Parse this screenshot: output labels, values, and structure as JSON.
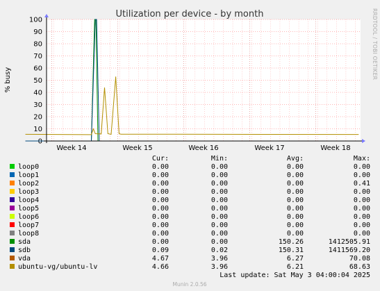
{
  "chart_data": {
    "type": "line",
    "title": "Utilization per device - by month",
    "ylabel": "% busy",
    "ylim": [
      0,
      100
    ],
    "yticks": [
      0,
      10,
      20,
      30,
      40,
      50,
      60,
      70,
      80,
      90,
      100
    ],
    "x_ticks": [
      "Week 14",
      "Week 15",
      "Week 16",
      "Week 17",
      "Week 18"
    ],
    "grid": true,
    "side_text": "RRDTOOL / TOBI OETIKER",
    "legend_headers": [
      "Cur:",
      "Min:",
      "Avg:",
      "Max:"
    ],
    "series": [
      {
        "name": "loop0",
        "color": "#00cc00",
        "cur": "0.00",
        "min": "0.00",
        "avg": "0.00",
        "max": "0.00"
      },
      {
        "name": "loop1",
        "color": "#0066b3",
        "cur": "0.00",
        "min": "0.00",
        "avg": "0.00",
        "max": "0.00"
      },
      {
        "name": "loop2",
        "color": "#ff8000",
        "cur": "0.00",
        "min": "0.00",
        "avg": "0.00",
        "max": "0.41"
      },
      {
        "name": "loop3",
        "color": "#ffcc00",
        "cur": "0.00",
        "min": "0.00",
        "avg": "0.00",
        "max": "0.00"
      },
      {
        "name": "loop4",
        "color": "#330099",
        "cur": "0.00",
        "min": "0.00",
        "avg": "0.00",
        "max": "0.00"
      },
      {
        "name": "loop5",
        "color": "#990099",
        "cur": "0.00",
        "min": "0.00",
        "avg": "0.00",
        "max": "0.00"
      },
      {
        "name": "loop6",
        "color": "#ccff00",
        "cur": "0.00",
        "min": "0.00",
        "avg": "0.00",
        "max": "0.00"
      },
      {
        "name": "loop7",
        "color": "#ff0000",
        "cur": "0.00",
        "min": "0.00",
        "avg": "0.00",
        "max": "0.00"
      },
      {
        "name": "loop8",
        "color": "#808080",
        "cur": "0.00",
        "min": "0.00",
        "avg": "0.00",
        "max": "0.00"
      },
      {
        "name": "sda",
        "color": "#008f00",
        "cur": "0.00",
        "min": "0.00",
        "avg": "150.26",
        "max": "1412505.91"
      },
      {
        "name": "sdb",
        "color": "#00487d",
        "cur": "0.09",
        "min": "0.02",
        "avg": "150.31",
        "max": "1411569.20"
      },
      {
        "name": "vda",
        "color": "#b35a00",
        "cur": "4.67",
        "min": "3.96",
        "avg": "6.27",
        "max": "70.08"
      },
      {
        "name": "ubuntu-vg/ubuntu-lv",
        "color": "#b38f00",
        "cur": "4.66",
        "min": "3.96",
        "avg": "6.21",
        "max": "68.63"
      }
    ],
    "plotted": [
      {
        "series": "sda",
        "x_week": [
          13.3,
          14.3,
          14.35,
          14.37,
          14.4,
          18.35
        ],
        "y": [
          0,
          0,
          100,
          100,
          0,
          0
        ]
      },
      {
        "series": "sdb",
        "x_week": [
          13.3,
          14.3,
          14.36,
          14.38,
          14.42,
          18.35
        ],
        "y": [
          0,
          0,
          100,
          100,
          0,
          0
        ]
      },
      {
        "series": "ubuntu-vg/ubuntu-lv",
        "x_week": [
          13.3,
          14.3,
          14.33,
          14.36,
          14.45,
          14.5,
          14.55,
          14.6,
          14.67,
          14.72,
          14.75,
          18.35
        ],
        "y": [
          5.5,
          5.2,
          10,
          6,
          5.8,
          44,
          6,
          5.5,
          53,
          6,
          5.6,
          5.4
        ]
      }
    ],
    "last_update": "Last update: Sat May  3 04:00:04 2025",
    "footer": "Munin 2.0.56"
  }
}
